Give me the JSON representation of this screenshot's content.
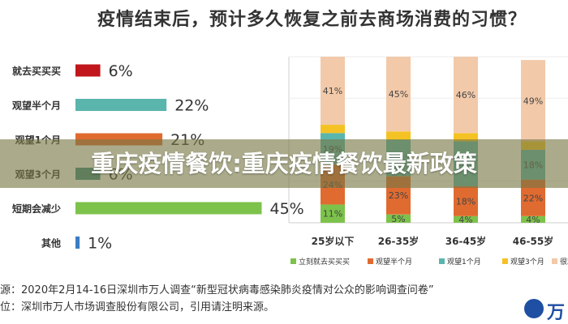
{
  "title": "疫情结束后，预计多久恢复之前去商场消费的习惯？",
  "banner": "重庆疫情餐饮:重庆疫情餐饮最新政策",
  "source": {
    "line1": "源：2020年2月14-16日深圳市万人调查“新型冠状病毒感染肺炎疫情对公众的影响调查问卷”",
    "line2": "位：深圳市万人市场调查股份有限公司，引用请注明来源。"
  },
  "logo_text": "万",
  "colors": {
    "immediate": "#c0161c",
    "half_month": "#e06b30",
    "one_month": "#5ab5ad",
    "three_month": "#f5c223",
    "reduce": "#7dc24b",
    "other": "#3b7dc4",
    "rarely": "#f2c9a9",
    "banner": "#787846"
  },
  "chart_data": [
    {
      "type": "bar",
      "orientation": "horizontal",
      "categories": [
        "就去买买买",
        "观望半个月",
        "观望1个月",
        "观望3个月",
        "短期会减少",
        "其他"
      ],
      "values": [
        6,
        22,
        21,
        6,
        45,
        1
      ],
      "value_labels": [
        "6%",
        "22%",
        "21%",
        "6%",
        "45%",
        "1%"
      ],
      "bar_colors": [
        "#c0161c",
        "#5ab5ad",
        "#e06b30",
        "#3b8a82",
        "#7dc24b",
        "#3b7dc4"
      ],
      "xlim": [
        0,
        50
      ]
    },
    {
      "type": "bar",
      "stacked": true,
      "categories": [
        "25岁以下",
        "26-35岁",
        "36-45岁",
        "46-55岁"
      ],
      "series": [
        {
          "name": "立刻就去买买买",
          "color": "#7dc24b",
          "values": [
            11,
            5,
            4,
            4
          ],
          "labels": [
            "11%",
            "5%",
            "4%",
            "4%"
          ]
        },
        {
          "name": "观望半个月",
          "color": "#e06b30",
          "values": [
            24,
            23,
            18,
            22
          ],
          "labels": [
            "24%",
            "23%",
            "18%",
            "22%"
          ]
        },
        {
          "name": "观望1个月",
          "color": "#5ab5ad",
          "values": [
            19,
            22,
            27,
            18
          ],
          "labels": [
            "19%",
            "",
            "",
            "18%"
          ]
        },
        {
          "name": "观望3个月",
          "color": "#f5c223",
          "values": [
            5,
            5,
            5,
            5
          ],
          "labels": [
            "",
            "",
            "",
            ""
          ]
        },
        {
          "name": "很难",
          "color": "#f2c9a9",
          "values": [
            41,
            45,
            46,
            49
          ],
          "labels": [
            "41%",
            "45%",
            "46%",
            "49%"
          ]
        }
      ],
      "ylim": [
        0,
        100
      ],
      "grid": true,
      "legend_position": "bottom"
    }
  ]
}
